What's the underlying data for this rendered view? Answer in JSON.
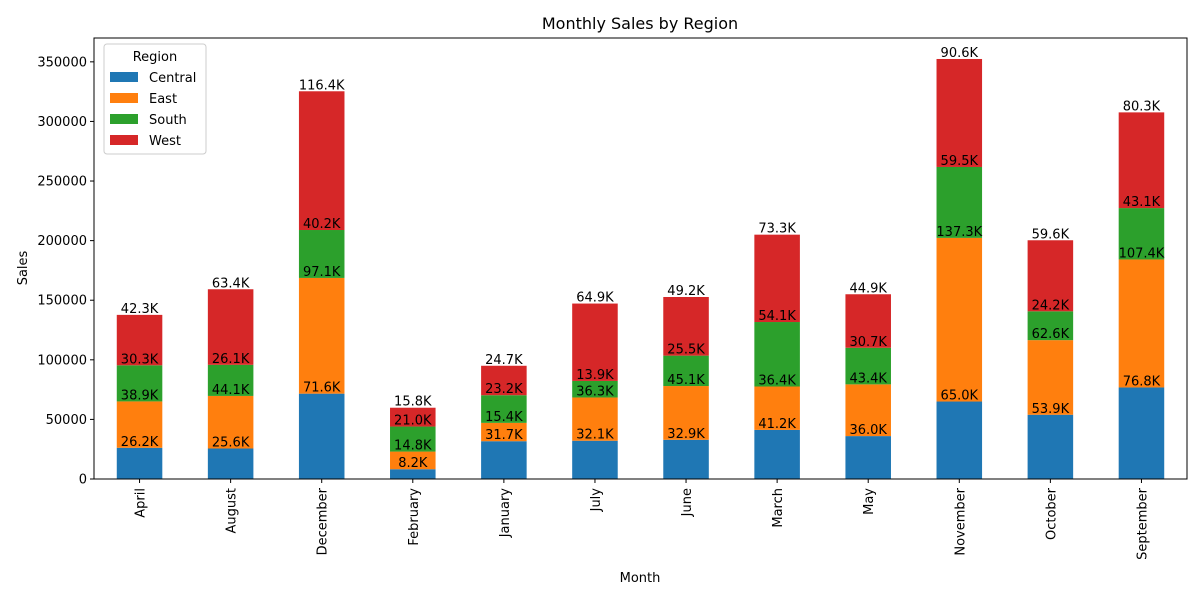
{
  "chart_data": {
    "type": "bar",
    "stacked": true,
    "title": "Monthly Sales by Region",
    "xlabel": "Month",
    "ylabel": "Sales",
    "ylim": [
      0,
      370000
    ],
    "yticks": [
      "0",
      "50000",
      "100000",
      "150000",
      "200000",
      "250000",
      "300000",
      "350000"
    ],
    "grid": false,
    "legend_title": "Region",
    "legend_position": "top-left",
    "categories": [
      "April",
      "August",
      "December",
      "February",
      "January",
      "July",
      "June",
      "March",
      "May",
      "November",
      "October",
      "September"
    ],
    "series": [
      {
        "name": "Central",
        "color": "#1f77b4",
        "values": [
          26200,
          25600,
          71600,
          8200,
          31700,
          32100,
          32900,
          41200,
          36000,
          65000,
          53900,
          76800
        ],
        "labels": [
          "26.2K",
          "25.6K",
          "71.6K",
          "8.2K",
          "31.7K",
          "32.1K",
          "32.9K",
          "41.2K",
          "36.0K",
          "65.0K",
          "53.9K",
          "76.8K"
        ]
      },
      {
        "name": "East",
        "color": "#ff7f0e",
        "values": [
          38900,
          44100,
          97100,
          14800,
          15400,
          36300,
          45100,
          36400,
          43400,
          137300,
          62600,
          107400
        ],
        "labels": [
          "38.9K",
          "44.1K",
          "97.1K",
          "14.8K",
          "15.4K",
          "36.3K",
          "45.1K",
          "36.4K",
          "43.4K",
          "137.3K",
          "62.6K",
          "107.4K"
        ]
      },
      {
        "name": "South",
        "color": "#2ca02c",
        "values": [
          30300,
          26100,
          40200,
          21000,
          23200,
          13900,
          25500,
          54100,
          30700,
          59500,
          24200,
          43100
        ],
        "labels": [
          "30.3K",
          "26.1K",
          "40.2K",
          "21.0K",
          "23.2K",
          "13.9K",
          "25.5K",
          "54.1K",
          "30.7K",
          "59.5K",
          "24.2K",
          "43.1K"
        ]
      },
      {
        "name": "West",
        "color": "#d62728",
        "values": [
          42300,
          63400,
          116400,
          15800,
          24700,
          64900,
          49200,
          73300,
          44900,
          90600,
          59600,
          80300
        ],
        "labels": [
          "42.3K",
          "63.4K",
          "116.4K",
          "15.8K",
          "24.7K",
          "64.9K",
          "49.2K",
          "73.3K",
          "44.9K",
          "90.6K",
          "59.6K",
          "80.3K"
        ]
      }
    ]
  }
}
